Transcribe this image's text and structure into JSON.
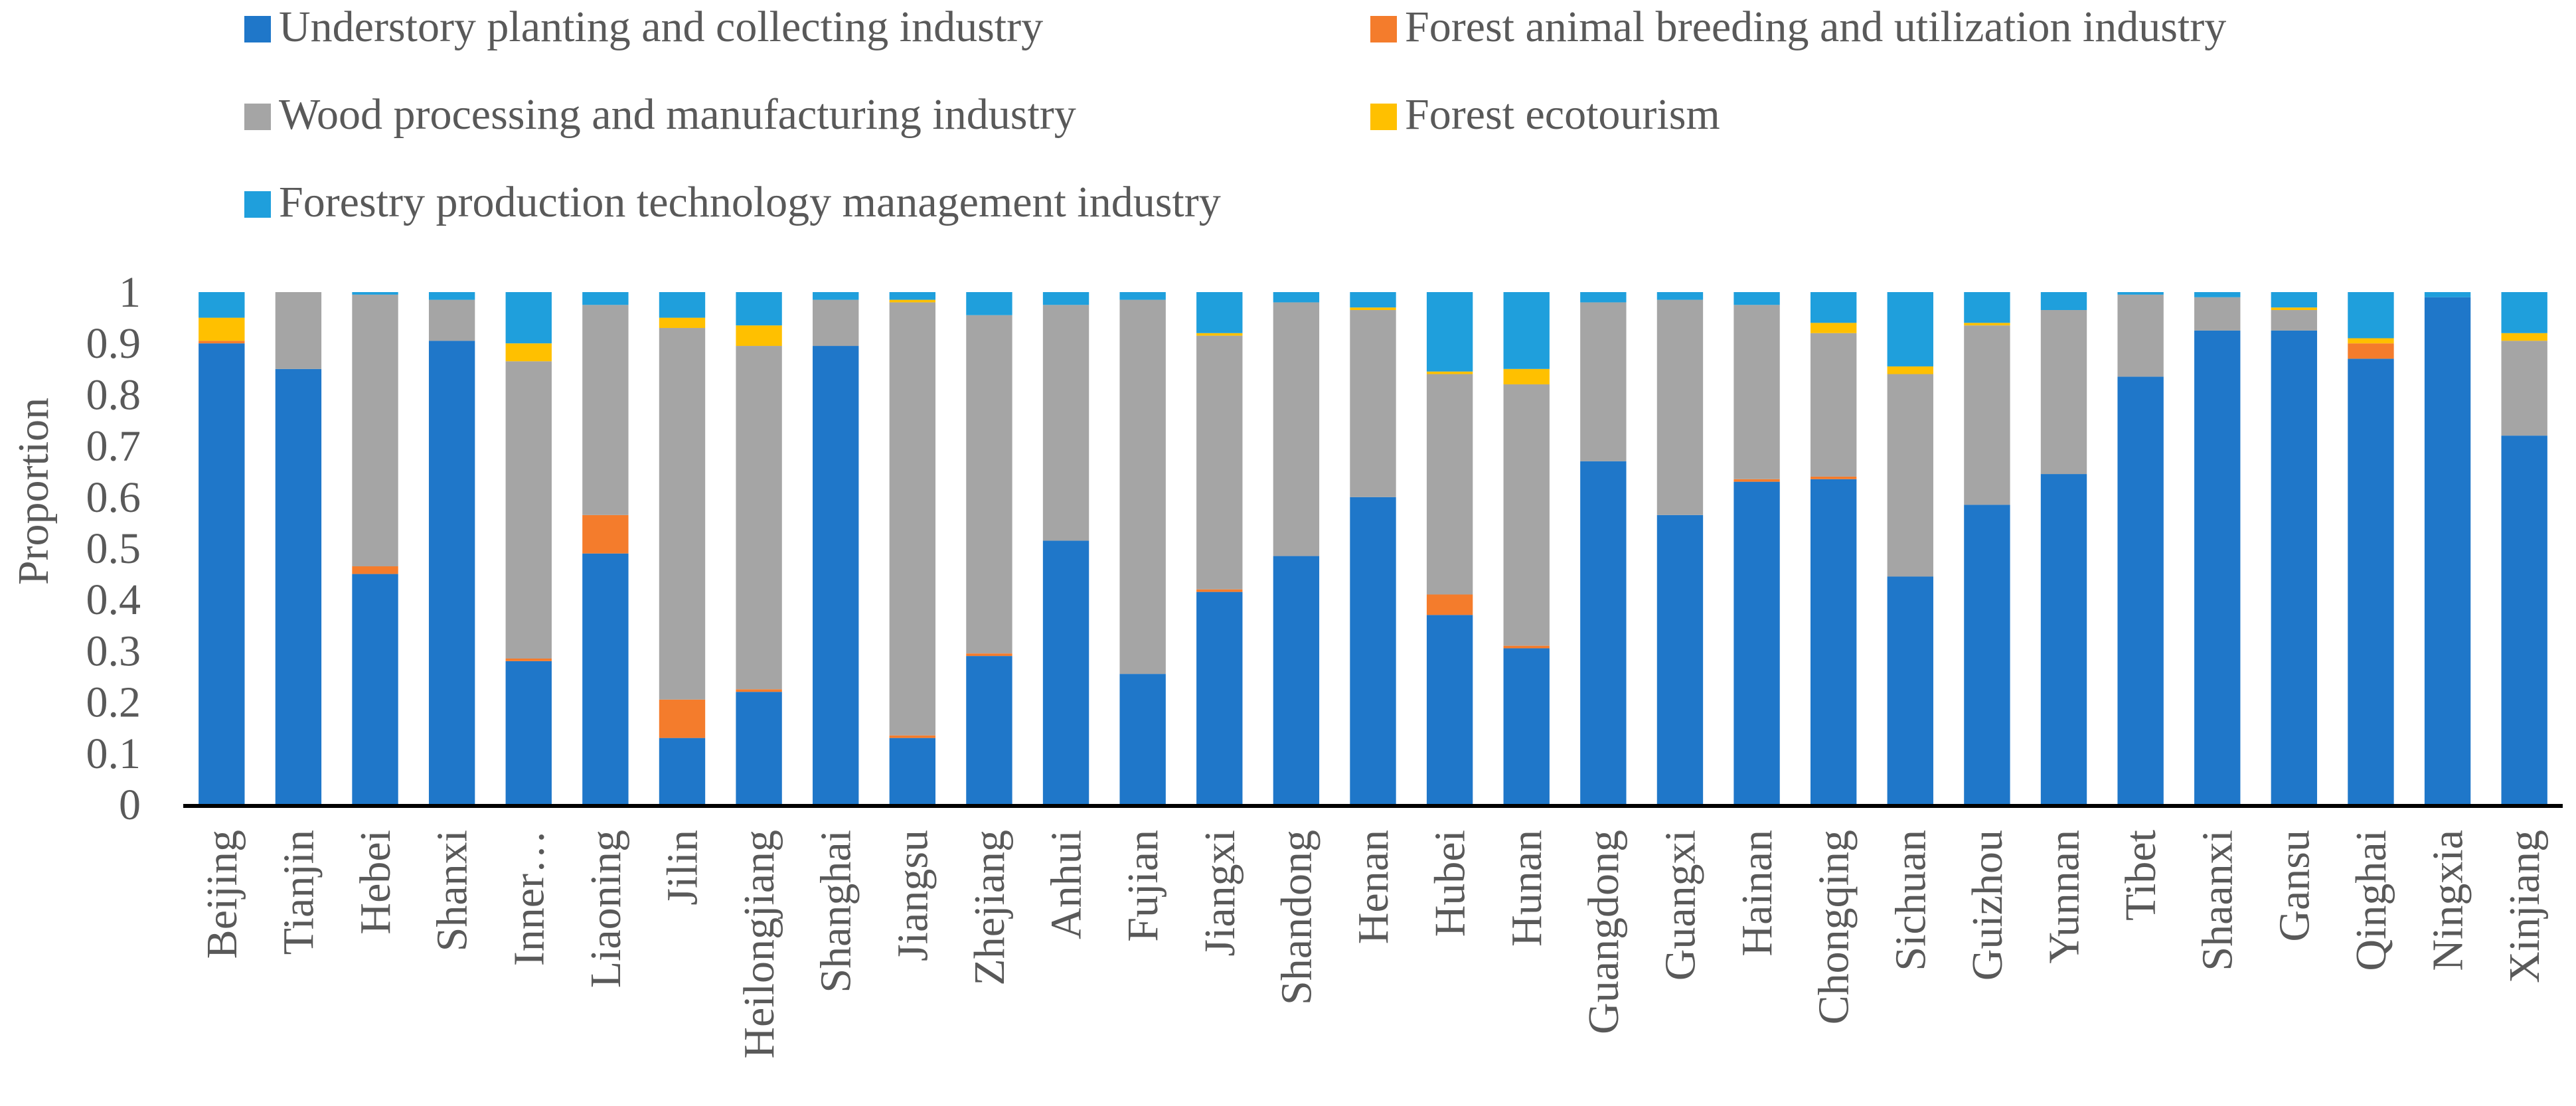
{
  "chart_data": {
    "type": "bar",
    "stacked": true,
    "title": "",
    "xlabel": "",
    "ylabel": "Proportion",
    "ylim": [
      0,
      1
    ],
    "yticks": [
      "0",
      "0.1",
      "0.2",
      "0.3",
      "0.4",
      "0.5",
      "0.6",
      "0.7",
      "0.8",
      "0.9",
      "1"
    ],
    "legend_position": "top",
    "categories": [
      "Beijing",
      "Tianjin",
      "Hebei",
      "Shanxi",
      "Inner…",
      "Liaoning",
      "Jilin",
      "Heilongjiang",
      "Shanghai",
      "Jiangsu",
      "Zhejiang",
      "Anhui",
      "Fujian",
      "Jiangxi",
      "Shandong",
      "Henan",
      "Hubei",
      "Hunan",
      "Guangdong",
      "Guangxi",
      "Hainan",
      "Chongqing",
      "Sichuan",
      "Guizhou",
      "Yunnan",
      "Tibet",
      "Shaanxi",
      "Gansu",
      "Qinghai",
      "Ningxia",
      "Xinjiang"
    ],
    "series": [
      {
        "name": "Understory planting and collecting industry",
        "color": "#1F77C9",
        "values": [
          0.9,
          0.85,
          0.45,
          0.905,
          0.28,
          0.49,
          0.13,
          0.22,
          0.895,
          0.13,
          0.29,
          0.515,
          0.255,
          0.415,
          0.485,
          0.6,
          0.37,
          0.305,
          0.67,
          0.565,
          0.63,
          0.635,
          0.445,
          0.585,
          0.645,
          0.835,
          0.925,
          0.925,
          0.87,
          0.99,
          0.72
        ]
      },
      {
        "name": "Forest animal breeding and utilization industry",
        "color": "#F47C2C",
        "values": [
          0.005,
          0.0,
          0.015,
          0.0,
          0.005,
          0.075,
          0.075,
          0.005,
          0.0,
          0.005,
          0.005,
          0.0,
          0.0,
          0.005,
          0.0,
          0.0,
          0.04,
          0.005,
          0.0,
          0.0,
          0.005,
          0.005,
          0.0,
          0.0,
          0.0,
          0.0,
          0.0,
          0.0,
          0.03,
          0.0,
          0.0
        ]
      },
      {
        "name": "Wood processing and manufacturing industry",
        "color": "#A5A5A5",
        "values": [
          0.0,
          0.15,
          0.53,
          0.08,
          0.58,
          0.41,
          0.725,
          0.67,
          0.09,
          0.845,
          0.66,
          0.46,
          0.73,
          0.495,
          0.495,
          0.365,
          0.43,
          0.51,
          0.31,
          0.42,
          0.34,
          0.28,
          0.395,
          0.35,
          0.32,
          0.16,
          0.065,
          0.04,
          0.0,
          0.0,
          0.185
        ]
      },
      {
        "name": "Forest ecotourism",
        "color": "#FFC000",
        "values": [
          0.045,
          0.0,
          0.0,
          0.0,
          0.035,
          0.0,
          0.02,
          0.04,
          0.0,
          0.005,
          0.0,
          0.0,
          0.0,
          0.005,
          0.0,
          0.005,
          0.005,
          0.03,
          0.0,
          0.0,
          0.0,
          0.02,
          0.015,
          0.005,
          0.0,
          0.0,
          0.0,
          0.005,
          0.01,
          0.0,
          0.015
        ]
      },
      {
        "name": "Forestry production technology management industry",
        "color": "#1F9FDC",
        "values": [
          0.05,
          0.0,
          0.005,
          0.015,
          0.1,
          0.025,
          0.05,
          0.065,
          0.015,
          0.015,
          0.045,
          0.025,
          0.015,
          0.08,
          0.02,
          0.03,
          0.155,
          0.15,
          0.02,
          0.015,
          0.025,
          0.06,
          0.145,
          0.06,
          0.035,
          0.005,
          0.01,
          0.03,
          0.09,
          0.01,
          0.08
        ]
      }
    ]
  }
}
